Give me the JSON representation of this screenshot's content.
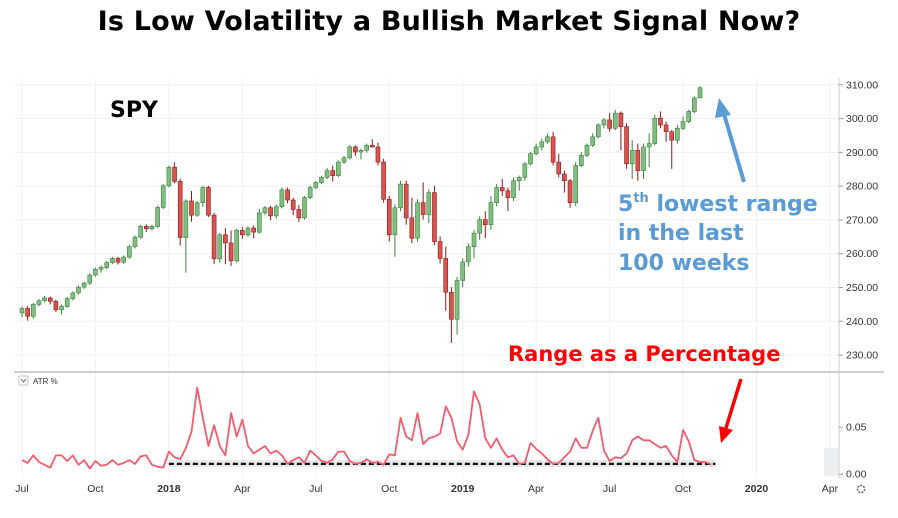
{
  "chart_data": {
    "title": "Is Low Volatility a Bullish Market Signal Now?",
    "type": "candlestick",
    "ticker_label": "SPY",
    "price_axis": {
      "range": [
        225,
        312
      ],
      "ticks": [
        "310.00",
        "300.00",
        "290.00",
        "280.00",
        "270.00",
        "260.00",
        "250.00",
        "240.00",
        "230.00"
      ],
      "tick_values": [
        310,
        300,
        290,
        280,
        270,
        260,
        250,
        240,
        230
      ]
    },
    "time_axis": {
      "labels": [
        "Jul",
        "Oct",
        "2018",
        "Apr",
        "Jul",
        "Oct",
        "2019",
        "Apr",
        "Jul",
        "Oct",
        "2020",
        "Apr"
      ],
      "label_weeks": [
        0,
        13,
        26,
        39,
        52,
        65,
        78,
        91,
        104,
        117,
        130,
        143
      ],
      "bold": [
        "2018",
        "2019",
        "2020"
      ]
    },
    "weekly_candles": [
      {
        "o": 242.5,
        "h": 244.3,
        "l": 241.2,
        "c": 243.8
      },
      {
        "o": 243.8,
        "h": 244.5,
        "l": 240.2,
        "c": 241.5
      },
      {
        "o": 241.5,
        "h": 245.4,
        "l": 240.8,
        "c": 245.0
      },
      {
        "o": 245.0,
        "h": 246.6,
        "l": 244.4,
        "c": 246.1
      },
      {
        "o": 246.1,
        "h": 247.5,
        "l": 245.6,
        "c": 246.9
      },
      {
        "o": 246.9,
        "h": 247.3,
        "l": 245.0,
        "c": 245.9
      },
      {
        "o": 245.9,
        "h": 246.4,
        "l": 242.8,
        "c": 243.4
      },
      {
        "o": 243.4,
        "h": 245.0,
        "l": 242.0,
        "c": 244.4
      },
      {
        "o": 244.4,
        "h": 247.2,
        "l": 244.0,
        "c": 246.7
      },
      {
        "o": 246.7,
        "h": 248.9,
        "l": 246.2,
        "c": 248.4
      },
      {
        "o": 248.4,
        "h": 250.6,
        "l": 247.9,
        "c": 250.1
      },
      {
        "o": 250.1,
        "h": 251.8,
        "l": 249.6,
        "c": 251.3
      },
      {
        "o": 251.3,
        "h": 254.2,
        "l": 250.8,
        "c": 253.7
      },
      {
        "o": 253.7,
        "h": 255.9,
        "l": 253.2,
        "c": 255.4
      },
      {
        "o": 255.4,
        "h": 256.5,
        "l": 254.4,
        "c": 255.9
      },
      {
        "o": 255.9,
        "h": 257.9,
        "l": 255.4,
        "c": 257.4
      },
      {
        "o": 257.4,
        "h": 259.1,
        "l": 256.9,
        "c": 258.6
      },
      {
        "o": 258.6,
        "h": 259.1,
        "l": 256.8,
        "c": 257.5
      },
      {
        "o": 257.5,
        "h": 259.5,
        "l": 257.0,
        "c": 259.0
      },
      {
        "o": 259.0,
        "h": 262.6,
        "l": 258.5,
        "c": 262.1
      },
      {
        "o": 262.1,
        "h": 265.4,
        "l": 261.6,
        "c": 264.9
      },
      {
        "o": 264.9,
        "h": 268.6,
        "l": 264.4,
        "c": 268.1
      },
      {
        "o": 268.1,
        "h": 268.7,
        "l": 266.4,
        "c": 267.4
      },
      {
        "o": 267.4,
        "h": 268.6,
        "l": 266.9,
        "c": 268.1
      },
      {
        "o": 268.1,
        "h": 274.2,
        "l": 267.6,
        "c": 273.7
      },
      {
        "o": 273.7,
        "h": 280.6,
        "l": 273.2,
        "c": 280.1
      },
      {
        "o": 280.1,
        "h": 286.1,
        "l": 279.6,
        "c": 285.6
      },
      {
        "o": 285.6,
        "h": 287.0,
        "l": 280.9,
        "c": 281.4
      },
      {
        "o": 281.4,
        "h": 282.2,
        "l": 262.4,
        "c": 264.8
      },
      {
        "o": 264.8,
        "h": 276.1,
        "l": 254.4,
        "c": 275.6
      },
      {
        "o": 275.6,
        "h": 278.6,
        "l": 269.5,
        "c": 271.4
      },
      {
        "o": 271.4,
        "h": 275.6,
        "l": 270.9,
        "c": 275.1
      },
      {
        "o": 275.1,
        "h": 280.1,
        "l": 273.9,
        "c": 279.6
      },
      {
        "o": 279.6,
        "h": 280.1,
        "l": 270.9,
        "c": 271.4
      },
      {
        "o": 271.4,
        "h": 272.1,
        "l": 256.9,
        "c": 258.5
      },
      {
        "o": 258.5,
        "h": 266.1,
        "l": 257.4,
        "c": 265.6
      },
      {
        "o": 265.6,
        "h": 267.6,
        "l": 256.9,
        "c": 263.2
      },
      {
        "o": 263.2,
        "h": 266.9,
        "l": 256.4,
        "c": 257.9
      },
      {
        "o": 257.9,
        "h": 267.4,
        "l": 257.4,
        "c": 266.9
      },
      {
        "o": 266.9,
        "h": 267.9,
        "l": 264.4,
        "c": 265.6
      },
      {
        "o": 265.6,
        "h": 268.1,
        "l": 264.9,
        "c": 267.6
      },
      {
        "o": 267.6,
        "h": 268.4,
        "l": 264.6,
        "c": 266.4
      },
      {
        "o": 266.4,
        "h": 273.2,
        "l": 265.9,
        "c": 272.1
      },
      {
        "o": 272.1,
        "h": 274.1,
        "l": 271.4,
        "c": 273.6
      },
      {
        "o": 273.6,
        "h": 274.1,
        "l": 269.9,
        "c": 271.2
      },
      {
        "o": 271.2,
        "h": 274.6,
        "l": 270.4,
        "c": 273.9
      },
      {
        "o": 273.9,
        "h": 279.6,
        "l": 273.4,
        "c": 278.9
      },
      {
        "o": 278.9,
        "h": 279.6,
        "l": 274.9,
        "c": 275.9
      },
      {
        "o": 275.9,
        "h": 276.6,
        "l": 271.4,
        "c": 273.1
      },
      {
        "o": 273.1,
        "h": 274.4,
        "l": 269.4,
        "c": 270.6
      },
      {
        "o": 270.6,
        "h": 277.1,
        "l": 270.1,
        "c": 276.6
      },
      {
        "o": 276.6,
        "h": 280.1,
        "l": 276.1,
        "c": 279.6
      },
      {
        "o": 279.6,
        "h": 281.6,
        "l": 279.1,
        "c": 281.1
      },
      {
        "o": 281.1,
        "h": 283.1,
        "l": 280.6,
        "c": 282.6
      },
      {
        "o": 282.6,
        "h": 285.4,
        "l": 282.1,
        "c": 284.6
      },
      {
        "o": 284.6,
        "h": 286.1,
        "l": 281.4,
        "c": 283.1
      },
      {
        "o": 283.1,
        "h": 287.6,
        "l": 282.6,
        "c": 287.1
      },
      {
        "o": 287.1,
        "h": 288.9,
        "l": 286.6,
        "c": 288.4
      },
      {
        "o": 288.4,
        "h": 292.1,
        "l": 287.9,
        "c": 291.6
      },
      {
        "o": 291.6,
        "h": 292.1,
        "l": 288.9,
        "c": 290.1
      },
      {
        "o": 290.1,
        "h": 291.1,
        "l": 287.9,
        "c": 290.6
      },
      {
        "o": 290.6,
        "h": 292.6,
        "l": 289.9,
        "c": 292.1
      },
      {
        "o": 292.1,
        "h": 293.9,
        "l": 291.4,
        "c": 291.6
      },
      {
        "o": 291.6,
        "h": 292.9,
        "l": 286.1,
        "c": 287.1
      },
      {
        "o": 287.1,
        "h": 288.1,
        "l": 275.1,
        "c": 276.1
      },
      {
        "o": 276.1,
        "h": 277.1,
        "l": 263.6,
        "c": 265.6
      },
      {
        "o": 265.6,
        "h": 274.6,
        "l": 259.1,
        "c": 273.6
      },
      {
        "o": 273.6,
        "h": 281.6,
        "l": 272.6,
        "c": 280.6
      },
      {
        "o": 280.6,
        "h": 281.6,
        "l": 268.6,
        "c": 270.6
      },
      {
        "o": 270.6,
        "h": 276.6,
        "l": 263.1,
        "c": 264.6
      },
      {
        "o": 264.6,
        "h": 276.1,
        "l": 263.6,
        "c": 275.1
      },
      {
        "o": 275.1,
        "h": 281.1,
        "l": 270.1,
        "c": 271.6
      },
      {
        "o": 271.6,
        "h": 279.1,
        "l": 269.1,
        "c": 278.1
      },
      {
        "o": 278.1,
        "h": 280.1,
        "l": 262.6,
        "c": 263.6
      },
      {
        "o": 263.6,
        "h": 265.1,
        "l": 257.1,
        "c": 258.6
      },
      {
        "o": 258.6,
        "h": 262.1,
        "l": 243.1,
        "c": 248.6
      },
      {
        "o": 248.6,
        "h": 250.1,
        "l": 233.6,
        "c": 240.6
      },
      {
        "o": 240.6,
        "h": 253.1,
        "l": 236.1,
        "c": 252.1
      },
      {
        "o": 252.1,
        "h": 258.6,
        "l": 250.1,
        "c": 257.6
      },
      {
        "o": 257.6,
        "h": 263.1,
        "l": 256.1,
        "c": 262.1
      },
      {
        "o": 262.1,
        "h": 267.1,
        "l": 258.6,
        "c": 266.1
      },
      {
        "o": 266.1,
        "h": 271.1,
        "l": 264.1,
        "c": 270.1
      },
      {
        "o": 270.1,
        "h": 272.6,
        "l": 264.6,
        "c": 268.6
      },
      {
        "o": 268.6,
        "h": 277.1,
        "l": 267.1,
        "c": 275.1
      },
      {
        "o": 275.1,
        "h": 280.6,
        "l": 274.1,
        "c": 279.6
      },
      {
        "o": 279.6,
        "h": 282.1,
        "l": 277.1,
        "c": 278.6
      },
      {
        "o": 278.6,
        "h": 279.6,
        "l": 272.6,
        "c": 276.6
      },
      {
        "o": 276.6,
        "h": 282.6,
        "l": 275.6,
        "c": 281.6
      },
      {
        "o": 281.6,
        "h": 283.1,
        "l": 278.6,
        "c": 282.6
      },
      {
        "o": 282.6,
        "h": 287.1,
        "l": 281.6,
        "c": 286.6
      },
      {
        "o": 286.6,
        "h": 290.1,
        "l": 286.1,
        "c": 289.6
      },
      {
        "o": 289.6,
        "h": 292.6,
        "l": 289.1,
        "c": 291.6
      },
      {
        "o": 291.6,
        "h": 294.1,
        "l": 290.6,
        "c": 293.1
      },
      {
        "o": 293.1,
        "h": 295.6,
        "l": 292.6,
        "c": 294.6
      },
      {
        "o": 294.6,
        "h": 296.1,
        "l": 286.1,
        "c": 287.1
      },
      {
        "o": 287.1,
        "h": 289.6,
        "l": 282.6,
        "c": 283.6
      },
      {
        "o": 283.6,
        "h": 284.6,
        "l": 278.1,
        "c": 281.6
      },
      {
        "o": 281.6,
        "h": 282.1,
        "l": 273.6,
        "c": 275.1
      },
      {
        "o": 275.1,
        "h": 287.1,
        "l": 274.1,
        "c": 286.1
      },
      {
        "o": 286.1,
        "h": 290.1,
        "l": 285.6,
        "c": 289.1
      },
      {
        "o": 289.1,
        "h": 292.6,
        "l": 288.6,
        "c": 292.1
      },
      {
        "o": 292.1,
        "h": 295.6,
        "l": 291.6,
        "c": 294.6
      },
      {
        "o": 294.6,
        "h": 298.6,
        "l": 294.1,
        "c": 298.1
      },
      {
        "o": 298.1,
        "h": 300.1,
        "l": 297.1,
        "c": 299.6
      },
      {
        "o": 299.6,
        "h": 301.6,
        "l": 296.1,
        "c": 297.1
      },
      {
        "o": 297.1,
        "h": 302.6,
        "l": 296.6,
        "c": 301.6
      },
      {
        "o": 301.6,
        "h": 302.1,
        "l": 290.6,
        "c": 297.6
      },
      {
        "o": 297.6,
        "h": 298.6,
        "l": 285.1,
        "c": 286.6
      },
      {
        "o": 286.6,
        "h": 293.6,
        "l": 282.1,
        "c": 290.6
      },
      {
        "o": 290.6,
        "h": 292.6,
        "l": 281.6,
        "c": 284.6
      },
      {
        "o": 284.6,
        "h": 292.6,
        "l": 282.1,
        "c": 291.6
      },
      {
        "o": 291.6,
        "h": 295.6,
        "l": 285.6,
        "c": 292.6
      },
      {
        "o": 292.6,
        "h": 301.1,
        "l": 292.1,
        "c": 300.1
      },
      {
        "o": 300.1,
        "h": 302.1,
        "l": 297.1,
        "c": 298.1
      },
      {
        "o": 298.1,
        "h": 299.1,
        "l": 293.1,
        "c": 296.1
      },
      {
        "o": 296.1,
        "h": 296.6,
        "l": 285.1,
        "c": 293.6
      },
      {
        "o": 293.6,
        "h": 298.1,
        "l": 292.6,
        "c": 297.1
      },
      {
        "o": 297.1,
        "h": 300.6,
        "l": 296.6,
        "c": 299.1
      },
      {
        "o": 299.1,
        "h": 302.6,
        "l": 298.6,
        "c": 302.1
      },
      {
        "o": 302.1,
        "h": 306.6,
        "l": 301.6,
        "c": 306.1
      },
      {
        "o": 306.1,
        "h": 309.6,
        "l": 306.1,
        "c": 309.1
      }
    ],
    "atr_panel": {
      "label": "ATR %",
      "ticks": [
        "0.05",
        "0.00"
      ],
      "tick_values": [
        0.05,
        0.0
      ],
      "range": [
        -0.004,
        0.1
      ],
      "values": [
        0.015,
        0.012,
        0.02,
        0.013,
        0.01,
        0.007,
        0.02,
        0.02,
        0.014,
        0.02,
        0.01,
        0.015,
        0.006,
        0.014,
        0.009,
        0.01,
        0.015,
        0.01,
        0.012,
        0.015,
        0.011,
        0.019,
        0.02,
        0.01,
        0.008,
        0.007,
        0.024,
        0.018,
        0.016,
        0.028,
        0.045,
        0.092,
        0.06,
        0.03,
        0.052,
        0.03,
        0.02,
        0.065,
        0.04,
        0.058,
        0.03,
        0.022,
        0.026,
        0.03,
        0.022,
        0.025,
        0.02,
        0.011,
        0.015,
        0.018,
        0.012,
        0.025,
        0.02,
        0.014,
        0.012,
        0.016,
        0.024,
        0.024,
        0.014,
        0.011,
        0.012,
        0.016,
        0.012,
        0.013,
        0.01,
        0.021,
        0.02,
        0.06,
        0.04,
        0.036,
        0.065,
        0.032,
        0.038,
        0.04,
        0.043,
        0.072,
        0.06,
        0.035,
        0.026,
        0.042,
        0.088,
        0.074,
        0.038,
        0.028,
        0.038,
        0.026,
        0.018,
        0.02,
        0.011,
        0.012,
        0.033,
        0.027,
        0.022,
        0.016,
        0.011,
        0.012,
        0.018,
        0.024,
        0.038,
        0.028,
        0.028,
        0.046,
        0.06,
        0.025,
        0.014,
        0.018,
        0.017,
        0.022,
        0.036,
        0.04,
        0.036,
        0.036,
        0.032,
        0.028,
        0.03,
        0.02,
        0.013,
        0.047,
        0.035,
        0.015,
        0.013,
        0.013,
        0.01
      ],
      "threshold": 0.011
    },
    "annotations": {
      "blue_sup": "th",
      "blue_lines": [
        "5",
        " lowest range",
        "in the last",
        "100 weeks"
      ],
      "red": "Range as a Percentage"
    },
    "colors": {
      "up": "#7fbf7f",
      "up_border": "#3f7f3f",
      "down": "#d9534f",
      "down_border": "#8b1a1a",
      "atr_line": "#f25c6e",
      "annotation_blue": "#5b9bd5",
      "annotation_red": "#ff0000"
    }
  }
}
